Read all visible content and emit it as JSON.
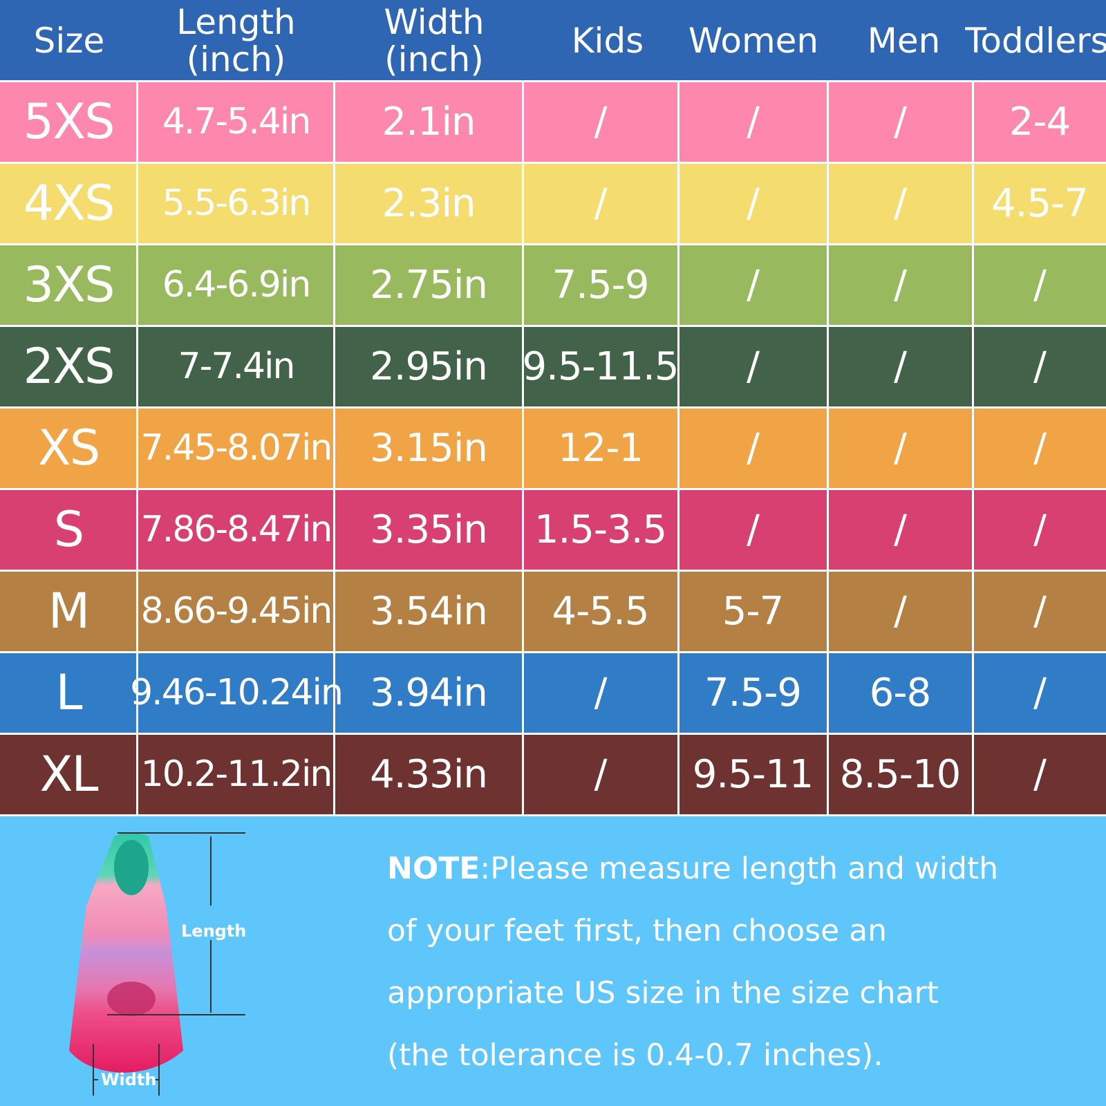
{
  "header": {
    "columns": [
      {
        "label": "Size"
      },
      {
        "label": "Length\n(inch)"
      },
      {
        "label": "Width\n(inch)"
      },
      {
        "label": "Kids"
      },
      {
        "label": "Women"
      },
      {
        "label": "Men"
      },
      {
        "label": "Toddlers"
      }
    ],
    "background": "#2f66b3"
  },
  "rows": [
    {
      "size": "5XS",
      "length": "4.7-5.4in",
      "width": "2.1in",
      "kids": "/",
      "women": "/",
      "men": "/",
      "toddlers": "2-4",
      "color": "#fe87ad"
    },
    {
      "size": "4XS",
      "length": "5.5-6.3in",
      "width": "2.3in",
      "kids": "/",
      "women": "/",
      "men": "/",
      "toddlers": "4.5-7",
      "color": "#f5dc6f"
    },
    {
      "size": "3XS",
      "length": "6.4-6.9in",
      "width": "2.75in",
      "kids": "7.5-9",
      "women": "/",
      "men": "/",
      "toddlers": "/",
      "color": "#98b95d"
    },
    {
      "size": "2XS",
      "length": "7-7.4in",
      "width": "2.95in",
      "kids": "9.5-11.5",
      "women": "/",
      "men": "/",
      "toddlers": "/",
      "color": "#42634a"
    },
    {
      "size": "XS",
      "length": "7.45-8.07in",
      "width": "3.15in",
      "kids": "12-1",
      "women": "/",
      "men": "/",
      "toddlers": "/",
      "color": "#f0a445"
    },
    {
      "size": "S",
      "length": "7.86-8.47in",
      "width": "3.35in",
      "kids": "1.5-3.5",
      "women": "/",
      "men": "/",
      "toddlers": "/",
      "color": "#d74070"
    },
    {
      "size": "M",
      "length": "8.66-9.45in",
      "width": "3.54in",
      "kids": "4-5.5",
      "women": "5-7",
      "men": "/",
      "toddlers": "/",
      "color": "#b58043"
    },
    {
      "size": "L",
      "length": "9.46-10.24in",
      "width": "3.94in",
      "kids": "/",
      "women": "7.5-9",
      "men": "6-8",
      "toddlers": "/",
      "color": "#317cc6"
    },
    {
      "size": "XL",
      "length": "10.2-11.2in",
      "width": "4.33in",
      "kids": "/",
      "women": "9.5-11",
      "men": "8.5-10",
      "toddlers": "/",
      "color": "#6e3331"
    }
  ],
  "diagram": {
    "length_label": "Length",
    "width_label": "Width"
  },
  "note": {
    "title": "NOTE",
    "line1": ":Please measure length and width",
    "line2": "of your feet first, then choose an",
    "line3": "appropriate US size in the size chart",
    "line4": "(the tolerance is 0.4-0.7 inches)."
  }
}
